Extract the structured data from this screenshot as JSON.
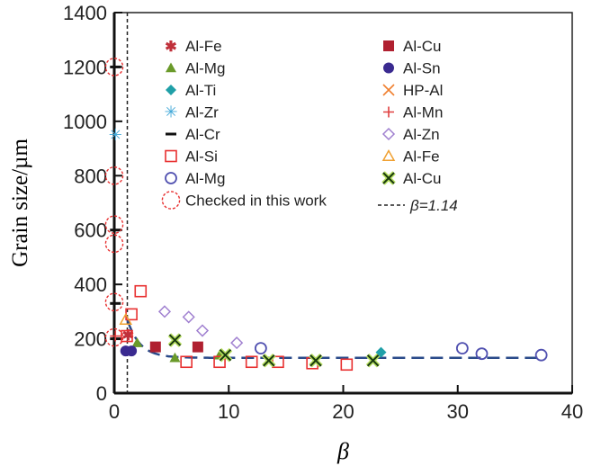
{
  "chart_data": {
    "type": "scatter",
    "xlabel": "β",
    "ylabel": "Grain size/µm",
    "xlim": [
      0,
      40
    ],
    "ylim": [
      0,
      1400
    ],
    "xticks": [
      0,
      10,
      20,
      30,
      40
    ],
    "yticks": [
      0,
      200,
      400,
      600,
      800,
      1000,
      1200,
      1400
    ],
    "vline": {
      "x": 1.14,
      "label": "β=1.14"
    },
    "fit_curve": {
      "asymptote": 130,
      "start": [
        1.14,
        270
      ]
    },
    "series": [
      {
        "name": "Al-Fe",
        "marker": "star",
        "color": "#c0303a",
        "points": [
          [
            1.2,
            215
          ]
        ]
      },
      {
        "name": "Al-Mg",
        "marker": "triangle-filled",
        "color": "#6a9a2a",
        "points": [
          [
            2.0,
            185
          ],
          [
            5.3,
            130
          ],
          [
            9.2,
            140
          ]
        ]
      },
      {
        "name": "Al-Ti",
        "marker": "diamond-filled",
        "color": "#20a0a8",
        "points": [
          [
            23.3,
            150
          ]
        ]
      },
      {
        "name": "Al-Zr",
        "marker": "asterisk",
        "color": "#40a8d8",
        "points": [
          [
            0.1,
            950
          ]
        ]
      },
      {
        "name": "Al-Cr",
        "marker": "dash",
        "color": "#111111",
        "points": [
          [
            0.1,
            1200
          ],
          [
            0.1,
            600
          ],
          [
            0.1,
            330
          ],
          [
            0.1,
            200
          ]
        ]
      },
      {
        "name": "Al-Si",
        "marker": "square-open",
        "color": "#e83030",
        "points": [
          [
            1.1,
            210
          ],
          [
            1.5,
            290
          ],
          [
            2.3,
            375
          ],
          [
            6.3,
            115
          ],
          [
            9.2,
            115
          ],
          [
            12.0,
            115
          ],
          [
            14.3,
            115
          ],
          [
            17.3,
            110
          ],
          [
            20.3,
            105
          ]
        ]
      },
      {
        "name": "Al-Mg",
        "marker": "circle-open",
        "color": "#5050b0",
        "points": [
          [
            12.8,
            165
          ],
          [
            30.4,
            165
          ],
          [
            32.1,
            145
          ],
          [
            37.3,
            140
          ]
        ]
      },
      {
        "name": "Checked in this work",
        "marker": "circle-dashed",
        "color": "#e83030",
        "points": [
          [
            0,
            1200
          ],
          [
            0,
            800
          ],
          [
            0,
            620
          ],
          [
            0,
            550
          ],
          [
            0,
            335
          ],
          [
            0,
            205
          ]
        ]
      },
      {
        "name": "Al-Cu",
        "marker": "square-filled",
        "color": "#b02030",
        "points": [
          [
            3.6,
            170
          ],
          [
            7.3,
            170
          ]
        ]
      },
      {
        "name": "Al-Sn",
        "marker": "circle-filled",
        "color": "#3a2a90",
        "points": [
          [
            1.0,
            155
          ],
          [
            1.5,
            155
          ]
        ]
      },
      {
        "name": "HP-Al",
        "marker": "x",
        "color": "#f08030",
        "points": []
      },
      {
        "name": "Al-Mn",
        "marker": "plus",
        "color": "#e04040",
        "points": [
          [
            0.1,
            210
          ]
        ]
      },
      {
        "name": "Al-Zn",
        "marker": "diamond-open",
        "color": "#a080d0",
        "points": [
          [
            4.4,
            300
          ],
          [
            6.5,
            280
          ],
          [
            7.7,
            230
          ],
          [
            10.7,
            185
          ]
        ]
      },
      {
        "name": "Al-Fe",
        "marker": "triangle-open",
        "color": "#f0a030",
        "points": [
          [
            1.0,
            270
          ]
        ]
      },
      {
        "name": "Al-Cu",
        "marker": "x-filled",
        "color": "#1a3a10",
        "points": [
          [
            5.3,
            195
          ],
          [
            9.7,
            140
          ],
          [
            13.5,
            120
          ],
          [
            17.6,
            120
          ],
          [
            22.6,
            120
          ]
        ]
      }
    ]
  }
}
